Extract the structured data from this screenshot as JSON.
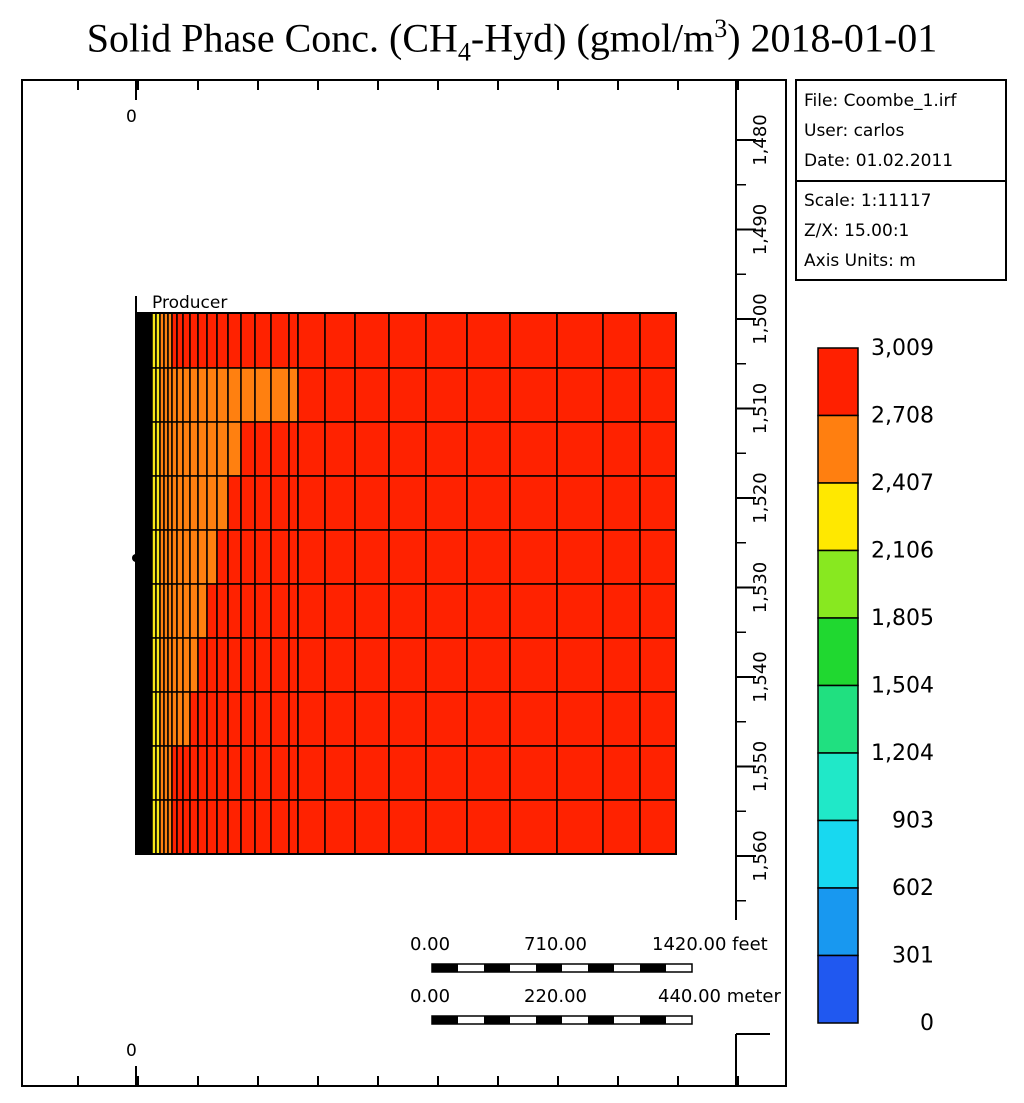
{
  "title": {
    "prefix": "Solid Phase Conc. (CH",
    "sub": "4",
    "middle": "-Hyd) (gmol/m",
    "sup": "3",
    "suffix": ") 2018-01-01"
  },
  "info_box": {
    "file": "File: Coombe_1.irf",
    "user": "User:  carlos",
    "date": "Date: 01.02.2011",
    "scale": "Scale: 1:11117",
    "zx": "Z/X: 15.00:1",
    "units": "Axis Units: m"
  },
  "well_label": "Producer",
  "frame_zero_top": "0",
  "frame_zero_bottom": "0",
  "scale_bar": {
    "feet": [
      "0.00",
      "710.00",
      "1420.00 feet"
    ],
    "meter": [
      "0.00",
      "220.00",
      "440.00 meter"
    ]
  },
  "colors": {
    "red": "#ff2200",
    "orange": "#ff8010",
    "yellow": "#f8e818",
    "black": "#000000"
  },
  "chart_data": {
    "type": "heatmap",
    "title": "Solid Phase Conc. (CH4-Hyd) (gmol/m3) 2018-01-01",
    "depth_axis": {
      "ticks": [
        "1,480",
        "1,490",
        "1,500",
        "1,510",
        "1,520",
        "1,530",
        "1,540",
        "1,550",
        "1,560"
      ],
      "units": "m"
    },
    "legend": {
      "values": [
        "3,009",
        "2,708",
        "2,407",
        "2,106",
        "1,805",
        "1,504",
        "1,204",
        "903",
        "602",
        "301",
        "0"
      ],
      "colors": [
        "#ff2000",
        "#ff7f10",
        "#ffe800",
        "#88e820",
        "#20d830",
        "#20e080",
        "#20e8c8",
        "#18d8f0",
        "#1898f0",
        "#2058f0",
        "#0010f0"
      ]
    },
    "grid": {
      "columns": 30,
      "rows": 10,
      "orange_columns_by_row": [
        0,
        20,
        12,
        10,
        9,
        8,
        7,
        6,
        0,
        0
      ],
      "red_value": "2,708-3,009",
      "orange_value": "2,407-2,708",
      "yellow_value": "2,106-2,407"
    }
  }
}
